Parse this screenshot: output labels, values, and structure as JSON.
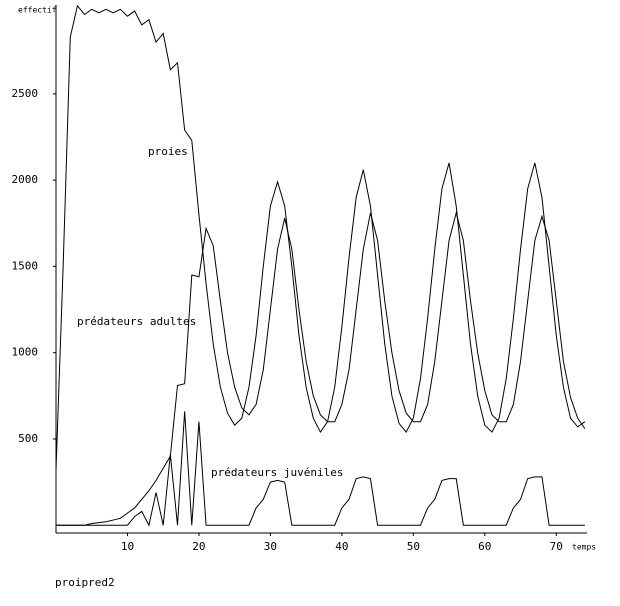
{
  "chart_data": {
    "type": "line",
    "ylabel": "effectif",
    "xlabel": "temps",
    "footer": "proipred2",
    "annotations": [
      "proies",
      "prédateurs adultes",
      "prédateurs juvéniles"
    ],
    "x": [
      0,
      1,
      2,
      3,
      4,
      5,
      6,
      7,
      8,
      9,
      10,
      11,
      12,
      13,
      14,
      15,
      16,
      17,
      18,
      19,
      20,
      21,
      22,
      23,
      24,
      25,
      26,
      27,
      28,
      29,
      30,
      31,
      32,
      33,
      34,
      35,
      36,
      37,
      38,
      39,
      40,
      41,
      42,
      43,
      44,
      45,
      46,
      47,
      48,
      49,
      50,
      51,
      52,
      53,
      54,
      55,
      56,
      57,
      58,
      59,
      60,
      61,
      62,
      63,
      64,
      65,
      66,
      67,
      68,
      69,
      70,
      71,
      72,
      73,
      74
    ],
    "series": [
      {
        "name": "proies",
        "color": "#000000",
        "values": [
          320,
          1500,
          2830,
          3010,
          2960,
          2990,
          2970,
          2990,
          2970,
          2990,
          2950,
          2980,
          2900,
          2930,
          2800,
          2850,
          2640,
          2680,
          2290,
          2230,
          1800,
          1400,
          1050,
          800,
          650,
          580,
          620,
          800,
          1100,
          1500,
          1850,
          1990,
          1850,
          1500,
          1100,
          800,
          620,
          540,
          600,
          800,
          1150,
          1550,
          1900,
          2060,
          1850,
          1450,
          1050,
          750,
          590,
          540,
          620,
          850,
          1200,
          1600,
          1950,
          2100,
          1850,
          1450,
          1050,
          750,
          580,
          540,
          620,
          850,
          1200,
          1600,
          1950,
          2100,
          1900,
          1500,
          1100,
          800,
          620,
          570,
          600
        ]
      },
      {
        "name": "prédateurs adultes",
        "color": "#000000",
        "values": [
          0,
          0,
          0,
          0,
          0,
          10,
          15,
          20,
          30,
          40,
          70,
          100,
          150,
          200,
          260,
          330,
          400,
          810,
          820,
          1450,
          1440,
          1720,
          1620,
          1300,
          1000,
          800,
          680,
          640,
          700,
          900,
          1250,
          1600,
          1780,
          1600,
          1250,
          950,
          750,
          640,
          600,
          600,
          700,
          900,
          1250,
          1600,
          1810,
          1650,
          1300,
          1000,
          780,
          650,
          600,
          600,
          700,
          950,
          1300,
          1650,
          1810,
          1650,
          1300,
          1000,
          780,
          640,
          600,
          600,
          700,
          950,
          1300,
          1650,
          1790,
          1650,
          1300,
          950,
          740,
          620,
          560
        ]
      },
      {
        "name": "prédateurs juvéniles",
        "color": "#000000",
        "values": [
          0,
          0,
          0,
          0,
          0,
          0,
          0,
          0,
          0,
          0,
          0,
          50,
          80,
          0,
          190,
          0,
          410,
          0,
          660,
          0,
          600,
          0,
          0,
          0,
          0,
          0,
          0,
          0,
          100,
          150,
          250,
          260,
          250,
          0,
          0,
          0,
          0,
          0,
          0,
          0,
          100,
          150,
          270,
          280,
          270,
          0,
          0,
          0,
          0,
          0,
          0,
          0,
          100,
          150,
          260,
          270,
          270,
          0,
          0,
          0,
          0,
          0,
          0,
          0,
          100,
          150,
          270,
          280,
          280,
          0,
          0,
          0,
          0,
          0,
          0
        ]
      }
    ],
    "xlim": [
      0,
      74.3
    ],
    "xticks": [
      10,
      20,
      30,
      40,
      50,
      60,
      70
    ],
    "ylim": [
      -45,
      3015
    ],
    "yticks": [
      500,
      1000,
      1500,
      2000,
      2500
    ]
  }
}
